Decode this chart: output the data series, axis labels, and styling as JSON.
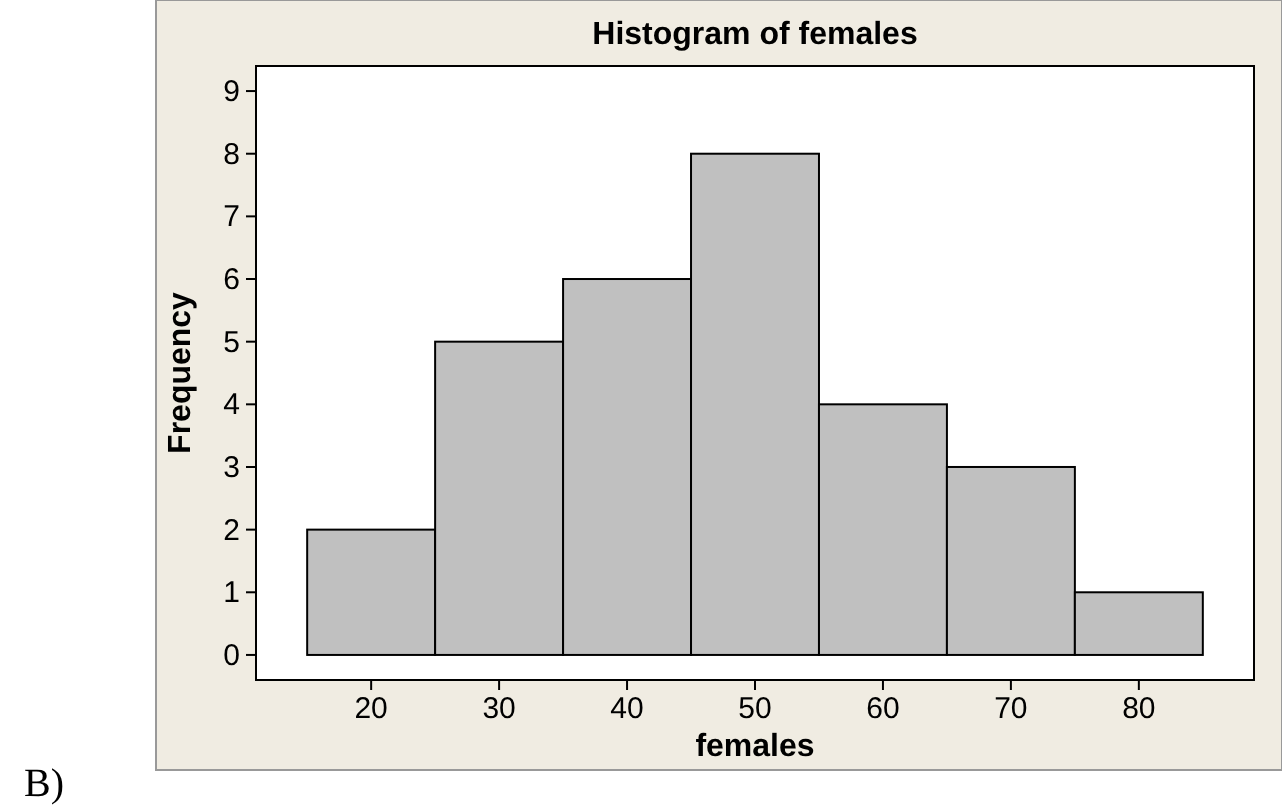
{
  "chart_data": {
    "type": "histogram",
    "title": "Histogram of females",
    "xlabel": "females",
    "ylabel": "Frequency",
    "bins": [
      15,
      25,
      35,
      45,
      55,
      65,
      75,
      85
    ],
    "values": [
      2,
      5,
      6,
      8,
      4,
      3,
      1
    ],
    "color": "#c0c0c0",
    "xlim": [
      11,
      89
    ],
    "xticks": [
      20,
      30,
      40,
      50,
      60,
      70,
      80
    ],
    "ylim": [
      -0.4,
      9.4
    ],
    "yticks": [
      0,
      1,
      2,
      3,
      4,
      5,
      6,
      7,
      8,
      9
    ],
    "grid": false,
    "annotations": [
      "B)"
    ]
  }
}
